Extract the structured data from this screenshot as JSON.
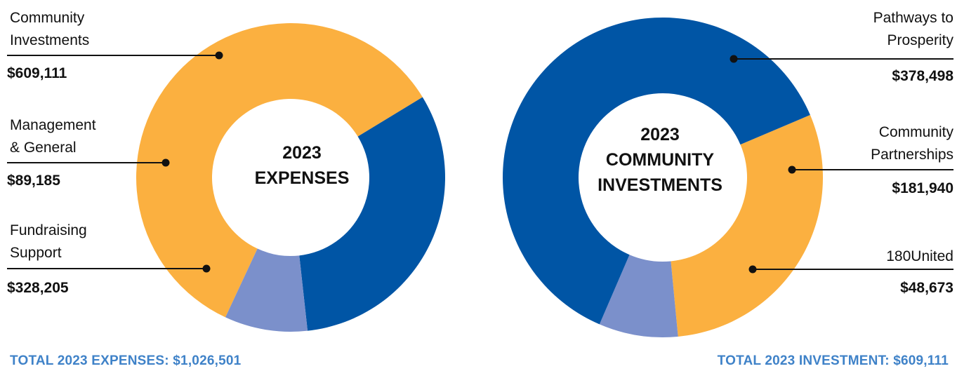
{
  "colors": {
    "yellow": "#fbb040",
    "dark_blue": "#0055a5",
    "light_blue": "#7b90cb",
    "total_text": "#3f82c8"
  },
  "chart_data": [
    {
      "type": "pie",
      "title": "2023 EXPENSES",
      "title_lines": [
        "2023",
        "EXPENSES"
      ],
      "total_label": "TOTAL 2023 EXPENSES: $1,026,501",
      "slices": [
        {
          "label_lines": [
            "Community",
            "Investments"
          ],
          "value": 609111,
          "value_label": "$609,111",
          "color": "#fbb040"
        },
        {
          "label_lines": [
            "Fundraising",
            "Support"
          ],
          "value": 328205,
          "value_label": "$328,205",
          "color": "#0055a5"
        },
        {
          "label_lines": [
            "Management",
            "& General"
          ],
          "value": 89185,
          "value_label": "$89,185",
          "color": "#7b90cb"
        }
      ]
    },
    {
      "type": "pie",
      "title": "2023 COMMUNITY INVESTMENTS",
      "title_lines": [
        "2023",
        "COMMUNITY",
        "INVESTMENTS"
      ],
      "total_label": "TOTAL 2023 INVESTMENT: $609,111",
      "slices": [
        {
          "label_lines": [
            "Community",
            "Partnerships"
          ],
          "value": 181940,
          "value_label": "$181,940",
          "color": "#fbb040"
        },
        {
          "label_lines": [
            "180United"
          ],
          "value": 48673,
          "value_label": "$48,673",
          "color": "#7b90cb"
        },
        {
          "label_lines": [
            "Pathways to",
            "Prosperity"
          ],
          "value": 378498,
          "value_label": "$378,498",
          "color": "#0055a5"
        }
      ]
    }
  ]
}
